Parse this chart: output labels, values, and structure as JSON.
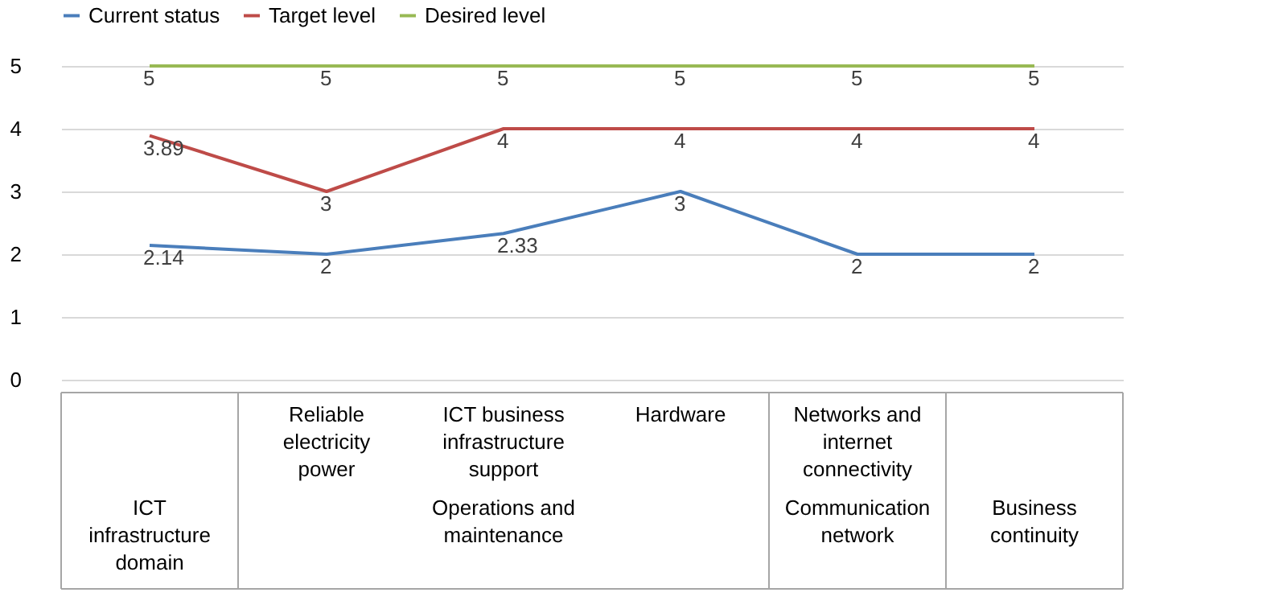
{
  "chart_data": {
    "type": "line",
    "categories": [
      null,
      "Reliable electricity power",
      "ICT business infrastructure support",
      "Hardware",
      "Networks and internet connectivity",
      null
    ],
    "series": [
      {
        "name": "Current status",
        "color": "#4a7ebb",
        "values": [
          2.14,
          2,
          2.33,
          3,
          2,
          2
        ]
      },
      {
        "name": "Target level",
        "color": "#be4b48",
        "values": [
          3.89,
          3,
          4,
          4,
          4,
          4
        ]
      },
      {
        "name": "Desired level",
        "color": "#98b954",
        "values": [
          5,
          5,
          5,
          5,
          5,
          5
        ]
      }
    ],
    "annotations": [
      "ICT infrastructure domain",
      "Operations and maintenance",
      "Communication network",
      "Business continuity"
    ],
    "ylim": [
      0,
      5
    ],
    "yticks": [
      0,
      1,
      2,
      3,
      4,
      5
    ],
    "grid": "y",
    "legend": "top",
    "data_labels": true,
    "marker": "none",
    "line_style": "solid"
  }
}
